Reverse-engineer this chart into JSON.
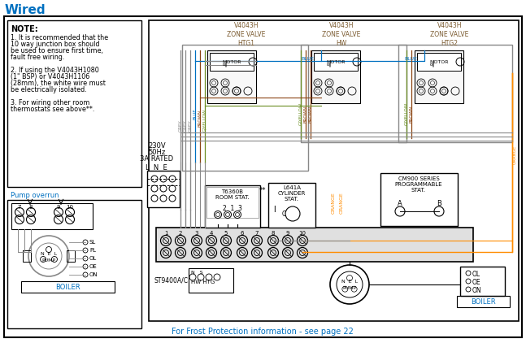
{
  "title": "Wired",
  "title_color": "#0070C0",
  "bg_color": "#FFFFFF",
  "border_color": "#000000",
  "note_text": "NOTE:",
  "note_lines": [
    "1. It is recommended that the",
    "10 way junction box should",
    "be used to ensure first time,",
    "fault free wiring.",
    "",
    "2. If using the V4043H1080",
    "(1\" BSP) or V4043H1106",
    "(28mm), the white wire must",
    "be electrically isolated.",
    "",
    "3. For wiring other room",
    "thermostats see above**."
  ],
  "pump_overrun_label": "Pump overrun",
  "frost_text": "For Frost Protection information - see page 22",
  "frost_color": "#0070C0",
  "zone_valve_labels": [
    "V4043H\nZONE VALVE\nHTG1",
    "V4043H\nZONE VALVE\nHW",
    "V4043H\nZONE VALVE\nHTG2"
  ],
  "zone_valve_color": "#4472C4",
  "supply_label": "230V\n50Hz\n3A RATED",
  "wire_colors": {
    "grey": "#888888",
    "blue": "#0070C0",
    "brown": "#8B4513",
    "yellow": "#DAA520",
    "orange": "#FF8C00",
    "green_yellow": "#6B8E23",
    "black": "#000000"
  },
  "terminal_nums": [
    "1",
    "2",
    "3",
    "4",
    "5",
    "6",
    "7",
    "8",
    "9",
    "10"
  ],
  "pump_overrun_nums": [
    "7",
    "8",
    "9",
    "10"
  ]
}
